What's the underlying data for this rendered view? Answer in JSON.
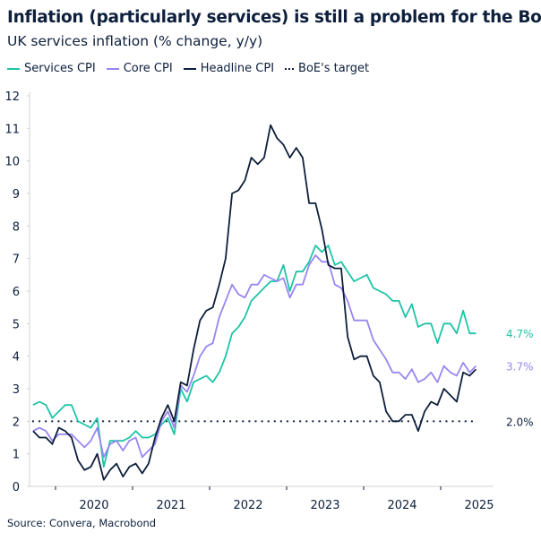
{
  "title": "Inflation (particularly services) is still a problem for the BoE",
  "subtitle": "UK services inflation (% change, y/y)",
  "source": "Source: Convera, Macrobond",
  "chart_data": {
    "type": "line",
    "title": "Inflation (particularly services) is still a problem for the BoE",
    "subtitle": "UK services inflation (% change, y/y)",
    "xlabel": "",
    "ylabel": "",
    "x_start": "2019-09",
    "x_end": "2025-06",
    "frequency": "monthly",
    "x_tick_labels": [
      "2020",
      "2021",
      "2022",
      "2023",
      "2024",
      "2025"
    ],
    "ylim": [
      0,
      12
    ],
    "y_ticks": [
      0,
      1,
      2,
      3,
      4,
      5,
      6,
      7,
      8,
      9,
      10,
      11,
      12
    ],
    "grid": false,
    "legend_position": "top-left",
    "series": [
      {
        "name": "Services CPI",
        "color": "#1dc4a6",
        "end_label": "4.7%",
        "values": [
          2.5,
          2.6,
          2.5,
          2.1,
          2.3,
          2.5,
          2.5,
          2.0,
          1.9,
          1.8,
          2.1,
          0.6,
          1.4,
          1.4,
          1.4,
          1.5,
          1.7,
          1.5,
          1.5,
          1.6,
          1.9,
          2.1,
          1.6,
          3.0,
          2.6,
          3.2,
          3.3,
          3.4,
          3.2,
          3.5,
          4.0,
          4.7,
          4.9,
          5.2,
          5.7,
          5.9,
          6.1,
          6.3,
          6.3,
          6.8,
          6.0,
          6.6,
          6.6,
          6.9,
          7.4,
          7.2,
          7.4,
          6.8,
          6.9,
          6.6,
          6.3,
          6.4,
          6.5,
          6.1,
          6.0,
          5.9,
          5.7,
          5.7,
          5.2,
          5.6,
          4.9,
          5.0,
          5.0,
          4.4,
          5.0,
          5.0,
          4.7,
          5.4,
          4.7,
          4.7
        ]
      },
      {
        "name": "Core CPI",
        "color": "#9a85f2",
        "end_label": "3.7%",
        "values": [
          1.7,
          1.8,
          1.7,
          1.4,
          1.6,
          1.6,
          1.6,
          1.4,
          1.2,
          1.4,
          1.8,
          0.9,
          1.3,
          1.4,
          1.1,
          1.4,
          1.5,
          0.9,
          1.1,
          1.3,
          2.0,
          2.3,
          1.8,
          3.1,
          2.9,
          3.4,
          4.0,
          4.3,
          4.4,
          5.2,
          5.7,
          6.2,
          5.9,
          5.8,
          6.2,
          6.2,
          6.5,
          6.4,
          6.3,
          6.4,
          5.8,
          6.2,
          6.2,
          6.8,
          7.1,
          6.9,
          6.9,
          6.2,
          6.1,
          5.7,
          5.1,
          5.1,
          5.1,
          4.5,
          4.2,
          3.9,
          3.5,
          3.5,
          3.3,
          3.6,
          3.2,
          3.3,
          3.5,
          3.2,
          3.7,
          3.5,
          3.4,
          3.8,
          3.5,
          3.7
        ]
      },
      {
        "name": "Headline CPI",
        "color": "#0d1f3c",
        "end_label": "",
        "values": [
          1.7,
          1.5,
          1.5,
          1.3,
          1.8,
          1.7,
          1.5,
          0.8,
          0.5,
          0.6,
          1.0,
          0.2,
          0.5,
          0.7,
          0.3,
          0.6,
          0.7,
          0.4,
          0.7,
          1.5,
          2.1,
          2.5,
          2.0,
          3.2,
          3.1,
          4.2,
          5.1,
          5.4,
          5.5,
          6.2,
          7.0,
          9.0,
          9.1,
          9.4,
          10.1,
          9.9,
          10.1,
          11.1,
          10.7,
          10.5,
          10.1,
          10.4,
          10.1,
          8.7,
          8.7,
          7.9,
          6.8,
          6.7,
          6.7,
          4.6,
          3.9,
          4.0,
          4.0,
          3.4,
          3.2,
          2.3,
          2.0,
          2.0,
          2.2,
          2.2,
          1.7,
          2.3,
          2.6,
          2.5,
          3.0,
          2.8,
          2.6,
          3.5,
          3.4,
          3.6
        ]
      },
      {
        "name": "BoE's target",
        "color": "#0d1f3c",
        "style": "dotted",
        "end_label": "2.0%",
        "value": 2.0
      }
    ]
  }
}
